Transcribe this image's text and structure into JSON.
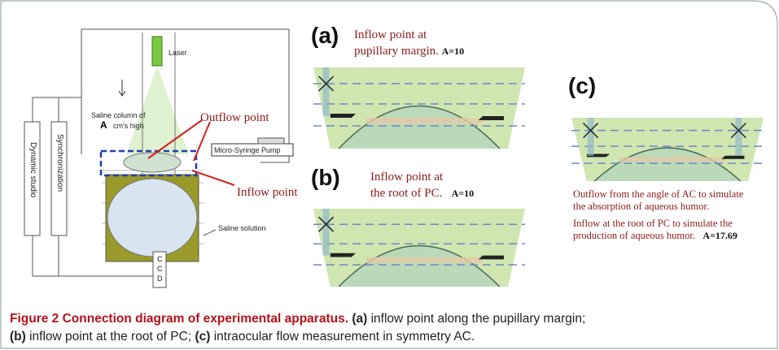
{
  "diagram": {
    "laser": "Laser",
    "outflow_point": "Outflow point",
    "saline_column": "Saline column of",
    "A": "A",
    "cm_high": "cm's high",
    "pump": "Micro-Syringe Pump",
    "inflow_point": "Inflow point",
    "saline_solution": "Saline solution",
    "dynamic_studio": "Dynamic studio",
    "synchronization": "Synchronization",
    "ccd": [
      "C",
      "C",
      "D"
    ]
  },
  "panels": [
    {
      "label": "(a)",
      "lines": [
        "Inflow point at",
        "pupillary margin."
      ],
      "value": "A=10"
    },
    {
      "label": "(b)",
      "lines": [
        "Inflow point at",
        "the root of PC."
      ],
      "value": "A=10"
    },
    {
      "label": "(c)",
      "lines": [
        "Outflow from the angle of AC to simulate",
        "the absorption of aqueous humor.",
        "Inflow at the root of PC to simulate the",
        "production of aqueous humor."
      ],
      "value": "A=17.69"
    }
  ],
  "caption": {
    "title": "Figure 2 Connection diagram of experimental apparatus.",
    "parts": [
      {
        "label": "(a)",
        "text": "inflow point along the pupillary margin;"
      },
      {
        "label": "(b)",
        "text": "inflow point at the root of PC;"
      },
      {
        "label": "(c)",
        "text": "intraocular flow measurement in symmetry AC."
      }
    ]
  }
}
